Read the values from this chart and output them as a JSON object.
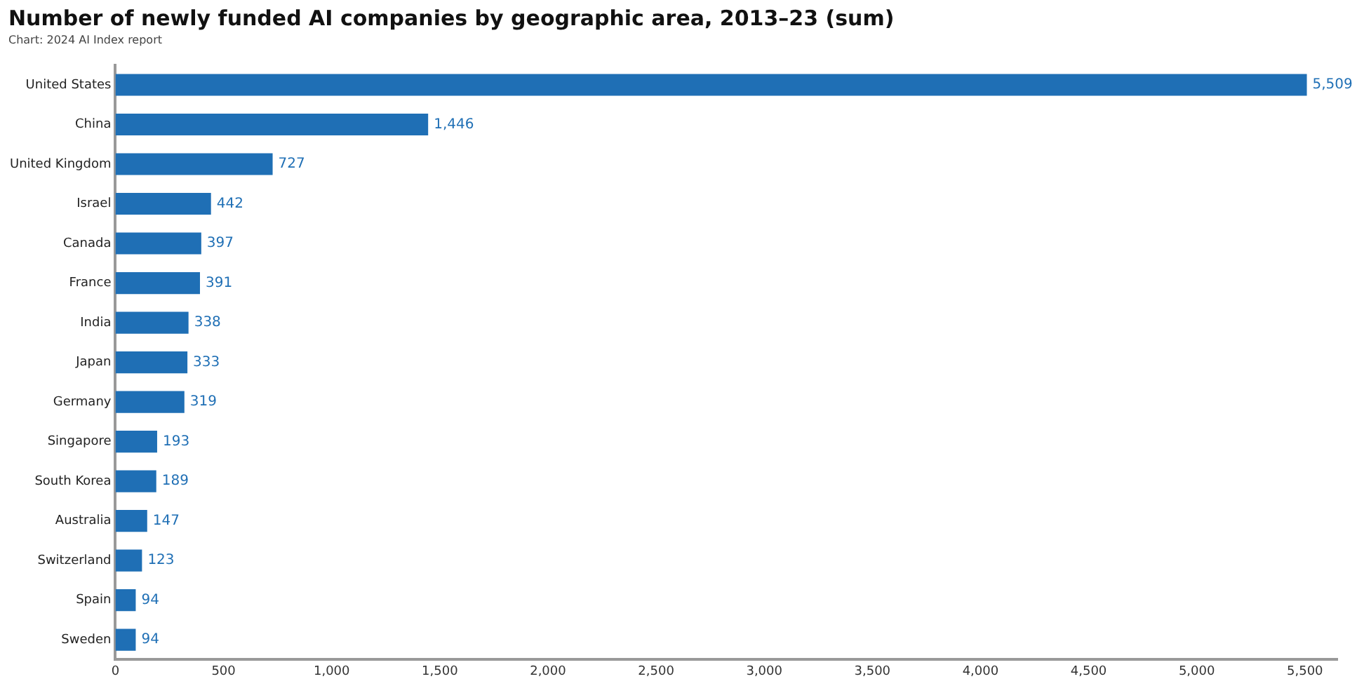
{
  "chart_data": {
    "type": "bar",
    "orientation": "horizontal",
    "title": "Number of newly funded AI companies by geographic area, 2013–23 (sum)",
    "subtitle": "Chart: 2024 AI Index report",
    "categories": [
      "United States",
      "China",
      "United Kingdom",
      "Israel",
      "Canada",
      "France",
      "India",
      "Japan",
      "Germany",
      "Singapore",
      "South Korea",
      "Australia",
      "Switzerland",
      "Spain",
      "Sweden"
    ],
    "values": [
      5509,
      1446,
      727,
      442,
      397,
      391,
      338,
      333,
      319,
      193,
      189,
      147,
      123,
      94,
      94
    ],
    "value_labels": [
      "5,509",
      "1,446",
      "727",
      "442",
      "397",
      "391",
      "338",
      "333",
      "319",
      "193",
      "189",
      "147",
      "123",
      "94",
      "94"
    ],
    "color": "#1f6fb5",
    "xlim": [
      0,
      5650
    ],
    "xticks": [
      0,
      {
        "value": 500,
        "label": "500"
      },
      {
        "value": 1000,
        "label": "1,000"
      },
      {
        "value": 1500,
        "label": "1,500"
      },
      {
        "value": 2000,
        "label": "2,000"
      },
      {
        "value": 2500,
        "label": "2,500"
      },
      {
        "value": 3000,
        "label": "3,000"
      },
      {
        "value": 3500,
        "label": "3,500"
      },
      {
        "value": 4000,
        "label": "4,000"
      },
      {
        "value": 4500,
        "label": "4,500"
      },
      {
        "value": 5000,
        "label": "5,000"
      },
      {
        "value": 5500,
        "label": "5,500"
      }
    ],
    "grid": false,
    "legend": false
  }
}
